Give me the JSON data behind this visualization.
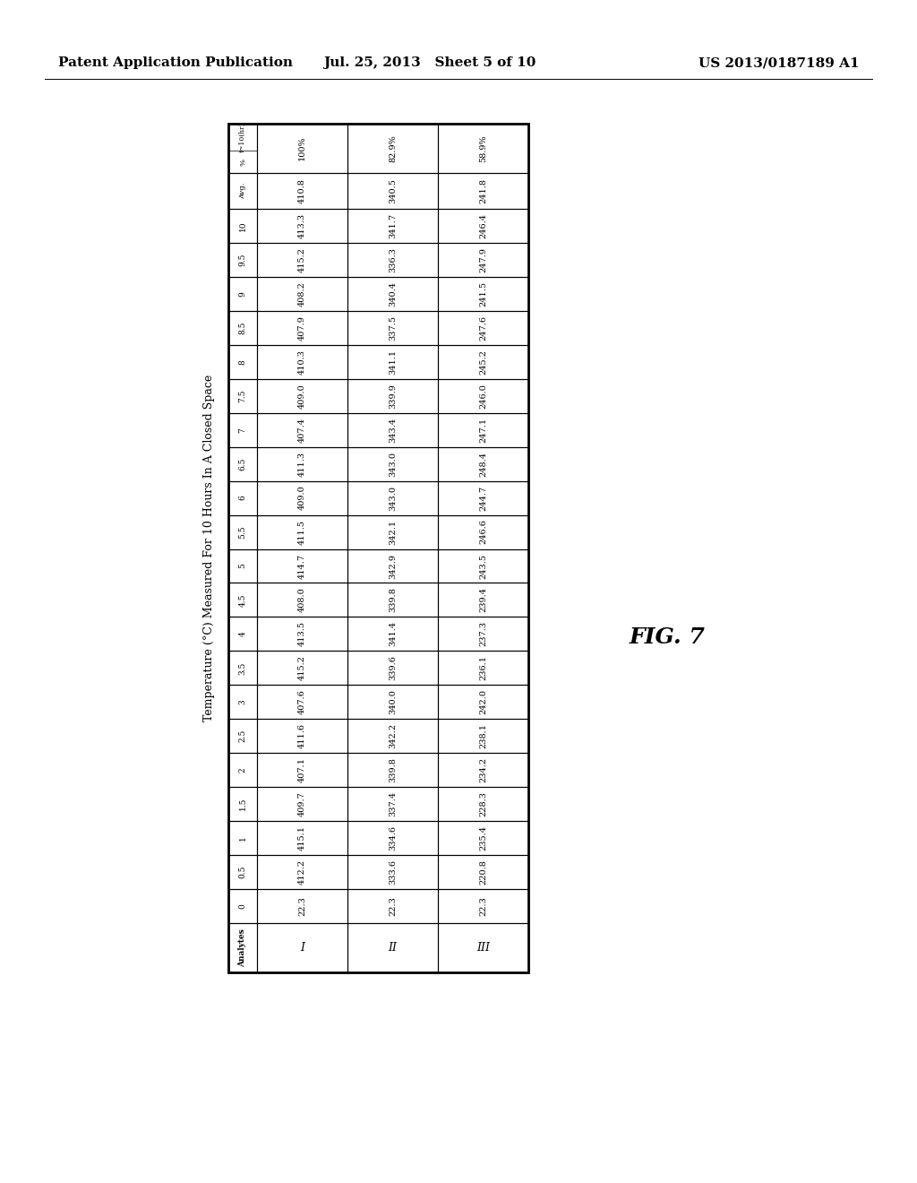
{
  "header_left": "Patent Application Publication",
  "header_mid": "Jul. 25, 2013   Sheet 5 of 10",
  "header_right": "US 2013/0187189 A1",
  "table_title": "Temperature (°C) Measured For 10 Hours In A Closed Space",
  "time_rows": [
    "t~10(hr)",
    "%",
    "Avg.",
    "10",
    "9.5",
    "9",
    "8.5",
    "8",
    "7.5",
    "7",
    "6.5",
    "6",
    "5.5",
    "5",
    "4.5",
    "4",
    "3.5",
    "3",
    "2.5",
    "2",
    "1.5",
    "1",
    "0.5",
    "0"
  ],
  "analyte_cols": [
    "I",
    "II",
    "III"
  ],
  "data": {
    "I": {
      "t~10(hr)": "",
      "%": "100%",
      "Avg.": "410.8",
      "10": "413.3",
      "9.5": "415.2",
      "9": "408.2",
      "8.5": "407.9",
      "8": "410.3",
      "7.5": "409.0",
      "7": "407.4",
      "6.5": "411.3",
      "6": "409.0",
      "5.5": "411.5",
      "5": "414.7",
      "4.5": "408.0",
      "4": "413.5",
      "3.5": "415.2",
      "3": "407.6",
      "2.5": "411.6",
      "2": "407.1",
      "1.5": "409.7",
      "1": "415.1",
      "0.5": "412.2",
      "0": "22.3"
    },
    "II": {
      "t~10(hr)": "",
      "%": "82.9%",
      "Avg.": "340.5",
      "10": "341.7",
      "9.5": "336.3",
      "9": "340.4",
      "8.5": "337.5",
      "8": "341.1",
      "7.5": "339.9",
      "7": "343.4",
      "6.5": "343.0",
      "6": "343.0",
      "5.5": "342.1",
      "5": "342.9",
      "4.5": "339.8",
      "4": "341.4",
      "3.5": "339.6",
      "3": "340.0",
      "2.5": "342.2",
      "2": "339.8",
      "1.5": "337.4",
      "1": "334.6",
      "0.5": "333.6",
      "0": "22.3"
    },
    "III": {
      "t~10(hr)": "",
      "%": "58.9%",
      "Avg.": "241.8",
      "10": "246.4",
      "9.5": "247.9",
      "9": "241.5",
      "8.5": "247.6",
      "8": "245.2",
      "7.5": "246.0",
      "7": "247.1",
      "6.5": "248.4",
      "6": "244.7",
      "5.5": "246.6",
      "5": "243.5",
      "4.5": "239.4",
      "4": "237.3",
      "3.5": "236.1",
      "3": "242.0",
      "2.5": "238.1",
      "2": "234.2",
      "1.5": "228.3",
      "1": "235.4",
      "0.5": "220.8",
      "0": "22.3"
    }
  },
  "fig_label": "FIG. 7",
  "bg_color": "#ffffff",
  "text_color": "#000000",
  "header_font_size": 11,
  "cell_font_size": 7.0,
  "title_font_size": 9.0
}
